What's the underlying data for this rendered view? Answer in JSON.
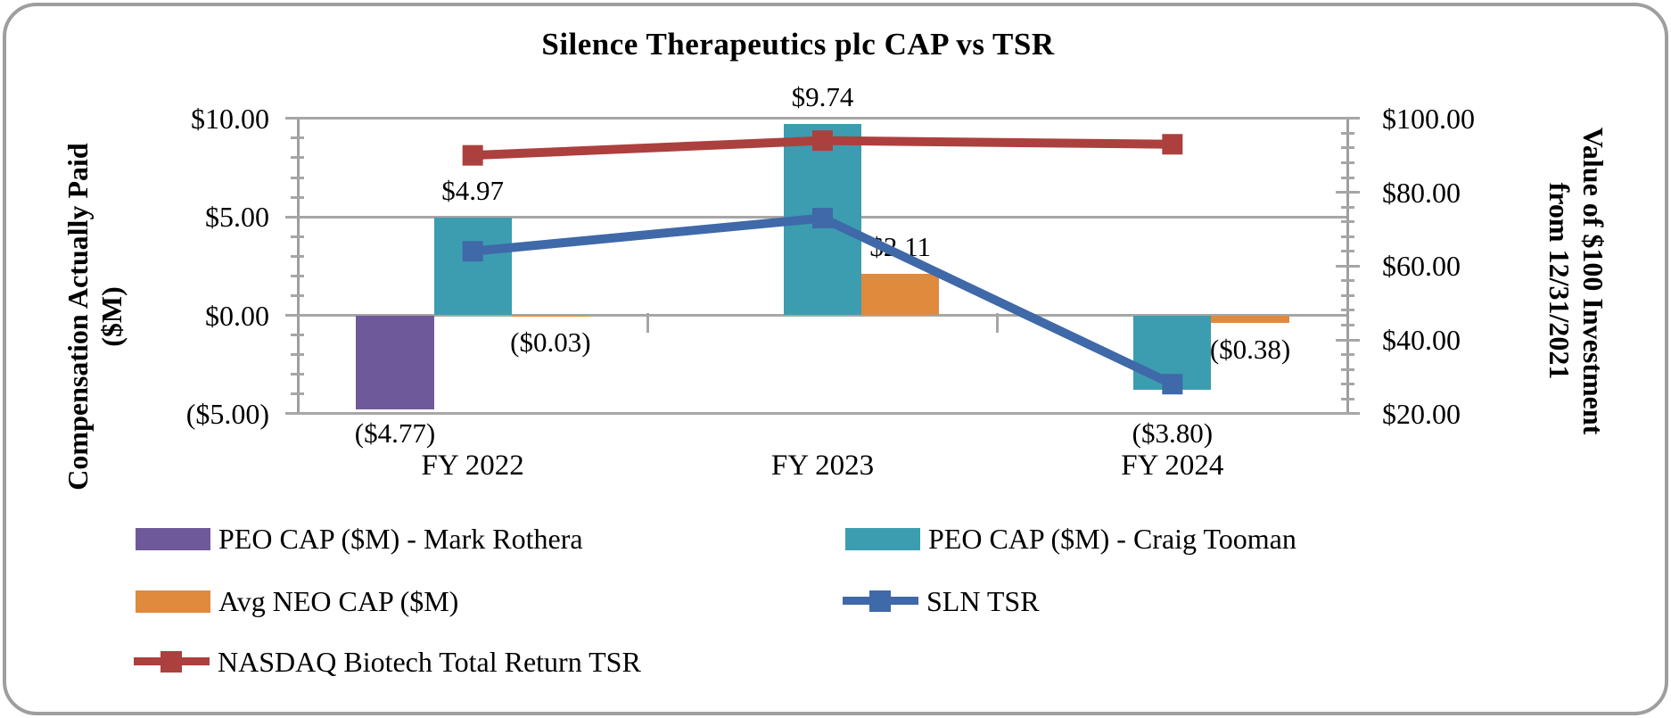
{
  "title": "Silence Therapeutics plc CAP vs TSR",
  "axes": {
    "left": {
      "title_lines": [
        "Compensation Actually Paid",
        "($M)"
      ],
      "ticks": [
        {
          "label": "$10.00",
          "value": 10
        },
        {
          "label": "$5.00",
          "value": 5
        },
        {
          "label": "$0.00",
          "value": 0
        },
        {
          "label": "($5.00)",
          "value": -5
        }
      ]
    },
    "right": {
      "title_lines": [
        "Value of $100 Investment",
        "from 12/31/2021"
      ],
      "ticks": [
        {
          "label": "$100.00",
          "value": 100
        },
        {
          "label": "$80.00",
          "value": 80
        },
        {
          "label": "$60.00",
          "value": 60
        },
        {
          "label": "$40.00",
          "value": 40
        },
        {
          "label": "$20.00",
          "value": 20
        }
      ]
    },
    "x": {
      "categories": [
        "FY 2022",
        "FY 2023",
        "FY 2024"
      ]
    }
  },
  "chart_data": {
    "type": "combo-bar-line",
    "categories": [
      "FY 2022",
      "FY 2023",
      "FY 2024"
    ],
    "left_axis": {
      "label": "Compensation Actually Paid ($M)",
      "range": [
        -5,
        10
      ],
      "gridline_step": 5,
      "minor_tick_step": 1
    },
    "right_axis": {
      "label": "Value of $100 Investment from 12/31/2021",
      "range": [
        20,
        100
      ],
      "tick_step": 20,
      "minor_tick_step": 4
    },
    "bar_series": [
      {
        "name": "PEO CAP ($M) - Mark Rothera",
        "color": "#6e5a9b",
        "axis": "left",
        "values": [
          -4.77,
          null,
          null
        ],
        "labels": [
          "($4.77)",
          null,
          null
        ]
      },
      {
        "name": "PEO CAP ($M) - Craig Tooman",
        "color": "#3c9db0",
        "axis": "left",
        "values": [
          4.97,
          9.74,
          -3.8
        ],
        "labels": [
          "$4.97",
          "$9.74",
          "($3.80)"
        ]
      },
      {
        "name": "Avg NEO CAP ($M)",
        "color": "#e08a3d",
        "axis": "left",
        "values": [
          -0.03,
          2.11,
          -0.38
        ],
        "labels": [
          "($0.03)",
          "$2.11",
          "($0.38)"
        ]
      }
    ],
    "line_series": [
      {
        "name": "SLN TSR",
        "color": "#3f69a8",
        "marker": "square",
        "axis": "right",
        "values": [
          64,
          73,
          28
        ]
      },
      {
        "name": "NASDAQ Biotech Total Return TSR",
        "color": "#ac403e",
        "marker": "square",
        "axis": "right",
        "values": [
          90,
          94,
          93
        ]
      }
    ],
    "grid": "horizontal gridlines at left-axis majors only",
    "legend_position": "bottom, two columns"
  },
  "legend": {
    "items": [
      {
        "label": "PEO CAP ($M) - Mark Rothera",
        "type": "bar",
        "color": "#6e5a9b"
      },
      {
        "label": "PEO CAP ($M) - Craig Tooman",
        "type": "bar",
        "color": "#3c9db0"
      },
      {
        "label": "Avg NEO CAP ($M)",
        "type": "bar",
        "color": "#e08a3d"
      },
      {
        "label": "SLN TSR",
        "type": "line",
        "color": "#3f69a8"
      },
      {
        "label": "NASDAQ Biotech Total Return TSR",
        "type": "line",
        "color": "#ac403e"
      }
    ]
  },
  "colors": {
    "gridline": "#a6a6a6",
    "axis_line": "#9e9e9e",
    "figure_border": "#9e9e9e",
    "text": "#000000",
    "background": "#ffffff"
  }
}
